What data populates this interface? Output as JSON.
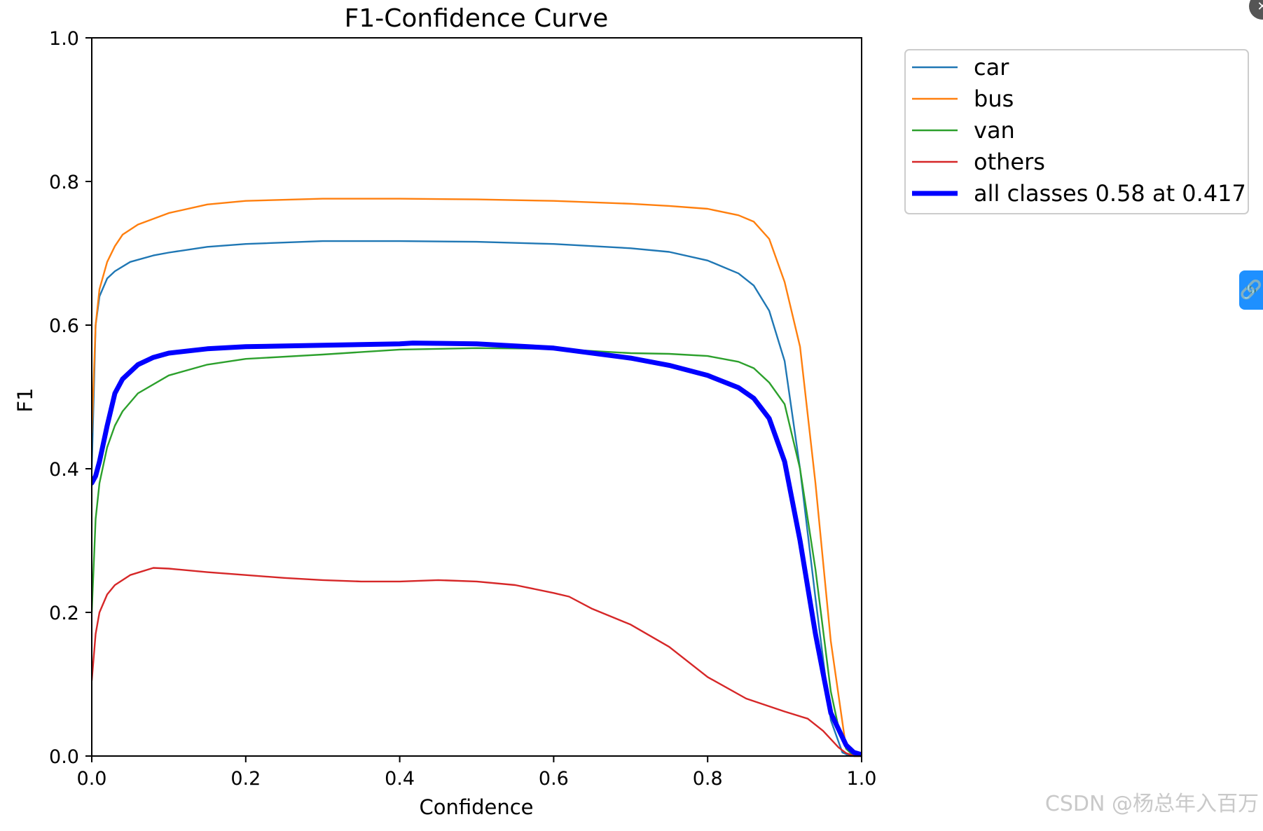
{
  "chart_data": {
    "type": "line",
    "title": "F1-Confidence Curve",
    "xlabel": "Confidence",
    "ylabel": "F1",
    "xlim": [
      0.0,
      1.0
    ],
    "ylim": [
      0.0,
      1.0
    ],
    "xticks": [
      "0.0",
      "0.2",
      "0.4",
      "0.6",
      "0.8",
      "1.0"
    ],
    "yticks": [
      "0.0",
      "0.2",
      "0.4",
      "0.6",
      "0.8",
      "1.0"
    ],
    "grid": false,
    "legend_position": "outside-right",
    "series": [
      {
        "name": "car",
        "color": "#1f77b4",
        "thick": false,
        "x": [
          0.0,
          0.005,
          0.01,
          0.02,
          0.03,
          0.05,
          0.08,
          0.1,
          0.15,
          0.2,
          0.3,
          0.4,
          0.5,
          0.6,
          0.7,
          0.75,
          0.8,
          0.84,
          0.86,
          0.88,
          0.9,
          0.92,
          0.94,
          0.96,
          0.975,
          0.985,
          1.0
        ],
        "y": [
          0.4,
          0.6,
          0.64,
          0.665,
          0.675,
          0.688,
          0.697,
          0.701,
          0.709,
          0.713,
          0.717,
          0.717,
          0.716,
          0.713,
          0.707,
          0.702,
          0.69,
          0.672,
          0.655,
          0.62,
          0.55,
          0.4,
          0.22,
          0.05,
          0.005,
          0.0,
          0.0
        ]
      },
      {
        "name": "bus",
        "color": "#ff7f0e",
        "thick": false,
        "x": [
          0.0,
          0.005,
          0.01,
          0.02,
          0.03,
          0.04,
          0.06,
          0.1,
          0.15,
          0.2,
          0.3,
          0.4,
          0.5,
          0.6,
          0.7,
          0.75,
          0.8,
          0.84,
          0.86,
          0.88,
          0.9,
          0.92,
          0.94,
          0.96,
          0.98,
          0.99,
          1.0
        ],
        "y": [
          0.45,
          0.6,
          0.65,
          0.688,
          0.71,
          0.726,
          0.74,
          0.756,
          0.768,
          0.773,
          0.776,
          0.776,
          0.775,
          0.773,
          0.769,
          0.766,
          0.762,
          0.753,
          0.744,
          0.72,
          0.66,
          0.57,
          0.38,
          0.16,
          0.01,
          0.0,
          0.0
        ]
      },
      {
        "name": "van",
        "color": "#2ca02c",
        "thick": false,
        "x": [
          0.0,
          0.005,
          0.01,
          0.02,
          0.03,
          0.04,
          0.06,
          0.1,
          0.15,
          0.2,
          0.3,
          0.4,
          0.5,
          0.6,
          0.7,
          0.75,
          0.8,
          0.84,
          0.86,
          0.88,
          0.9,
          0.92,
          0.94,
          0.96,
          0.97,
          0.98,
          0.99,
          1.0
        ],
        "y": [
          0.2,
          0.33,
          0.38,
          0.43,
          0.46,
          0.48,
          0.505,
          0.53,
          0.545,
          0.553,
          0.559,
          0.566,
          0.568,
          0.567,
          0.561,
          0.56,
          0.557,
          0.549,
          0.54,
          0.52,
          0.49,
          0.4,
          0.26,
          0.09,
          0.04,
          0.01,
          0.0,
          0.0
        ]
      },
      {
        "name": "others",
        "color": "#d62728",
        "thick": false,
        "x": [
          0.0,
          0.005,
          0.01,
          0.02,
          0.03,
          0.05,
          0.08,
          0.1,
          0.15,
          0.2,
          0.25,
          0.3,
          0.35,
          0.4,
          0.45,
          0.5,
          0.55,
          0.6,
          0.62,
          0.65,
          0.7,
          0.75,
          0.8,
          0.85,
          0.9,
          0.93,
          0.95,
          0.97,
          0.98,
          0.99,
          1.0
        ],
        "y": [
          0.105,
          0.17,
          0.2,
          0.225,
          0.238,
          0.252,
          0.262,
          0.261,
          0.256,
          0.252,
          0.248,
          0.245,
          0.243,
          0.243,
          0.245,
          0.243,
          0.238,
          0.227,
          0.222,
          0.205,
          0.183,
          0.152,
          0.11,
          0.08,
          0.062,
          0.052,
          0.035,
          0.012,
          0.004,
          0.0,
          0.0
        ]
      },
      {
        "name": "all classes 0.58 at 0.417",
        "color": "#0000ff",
        "thick": true,
        "x": [
          0.0,
          0.005,
          0.01,
          0.02,
          0.03,
          0.04,
          0.06,
          0.08,
          0.1,
          0.15,
          0.2,
          0.3,
          0.4,
          0.417,
          0.5,
          0.6,
          0.7,
          0.75,
          0.8,
          0.84,
          0.86,
          0.88,
          0.9,
          0.92,
          0.94,
          0.96,
          0.98,
          0.99,
          1.0
        ],
        "y": [
          0.38,
          0.39,
          0.41,
          0.46,
          0.505,
          0.525,
          0.545,
          0.555,
          0.561,
          0.567,
          0.57,
          0.572,
          0.574,
          0.575,
          0.574,
          0.568,
          0.554,
          0.544,
          0.53,
          0.513,
          0.498,
          0.47,
          0.41,
          0.3,
          0.17,
          0.06,
          0.015,
          0.005,
          0.002
        ]
      }
    ]
  },
  "watermark": "CSDN @杨总年入百万"
}
